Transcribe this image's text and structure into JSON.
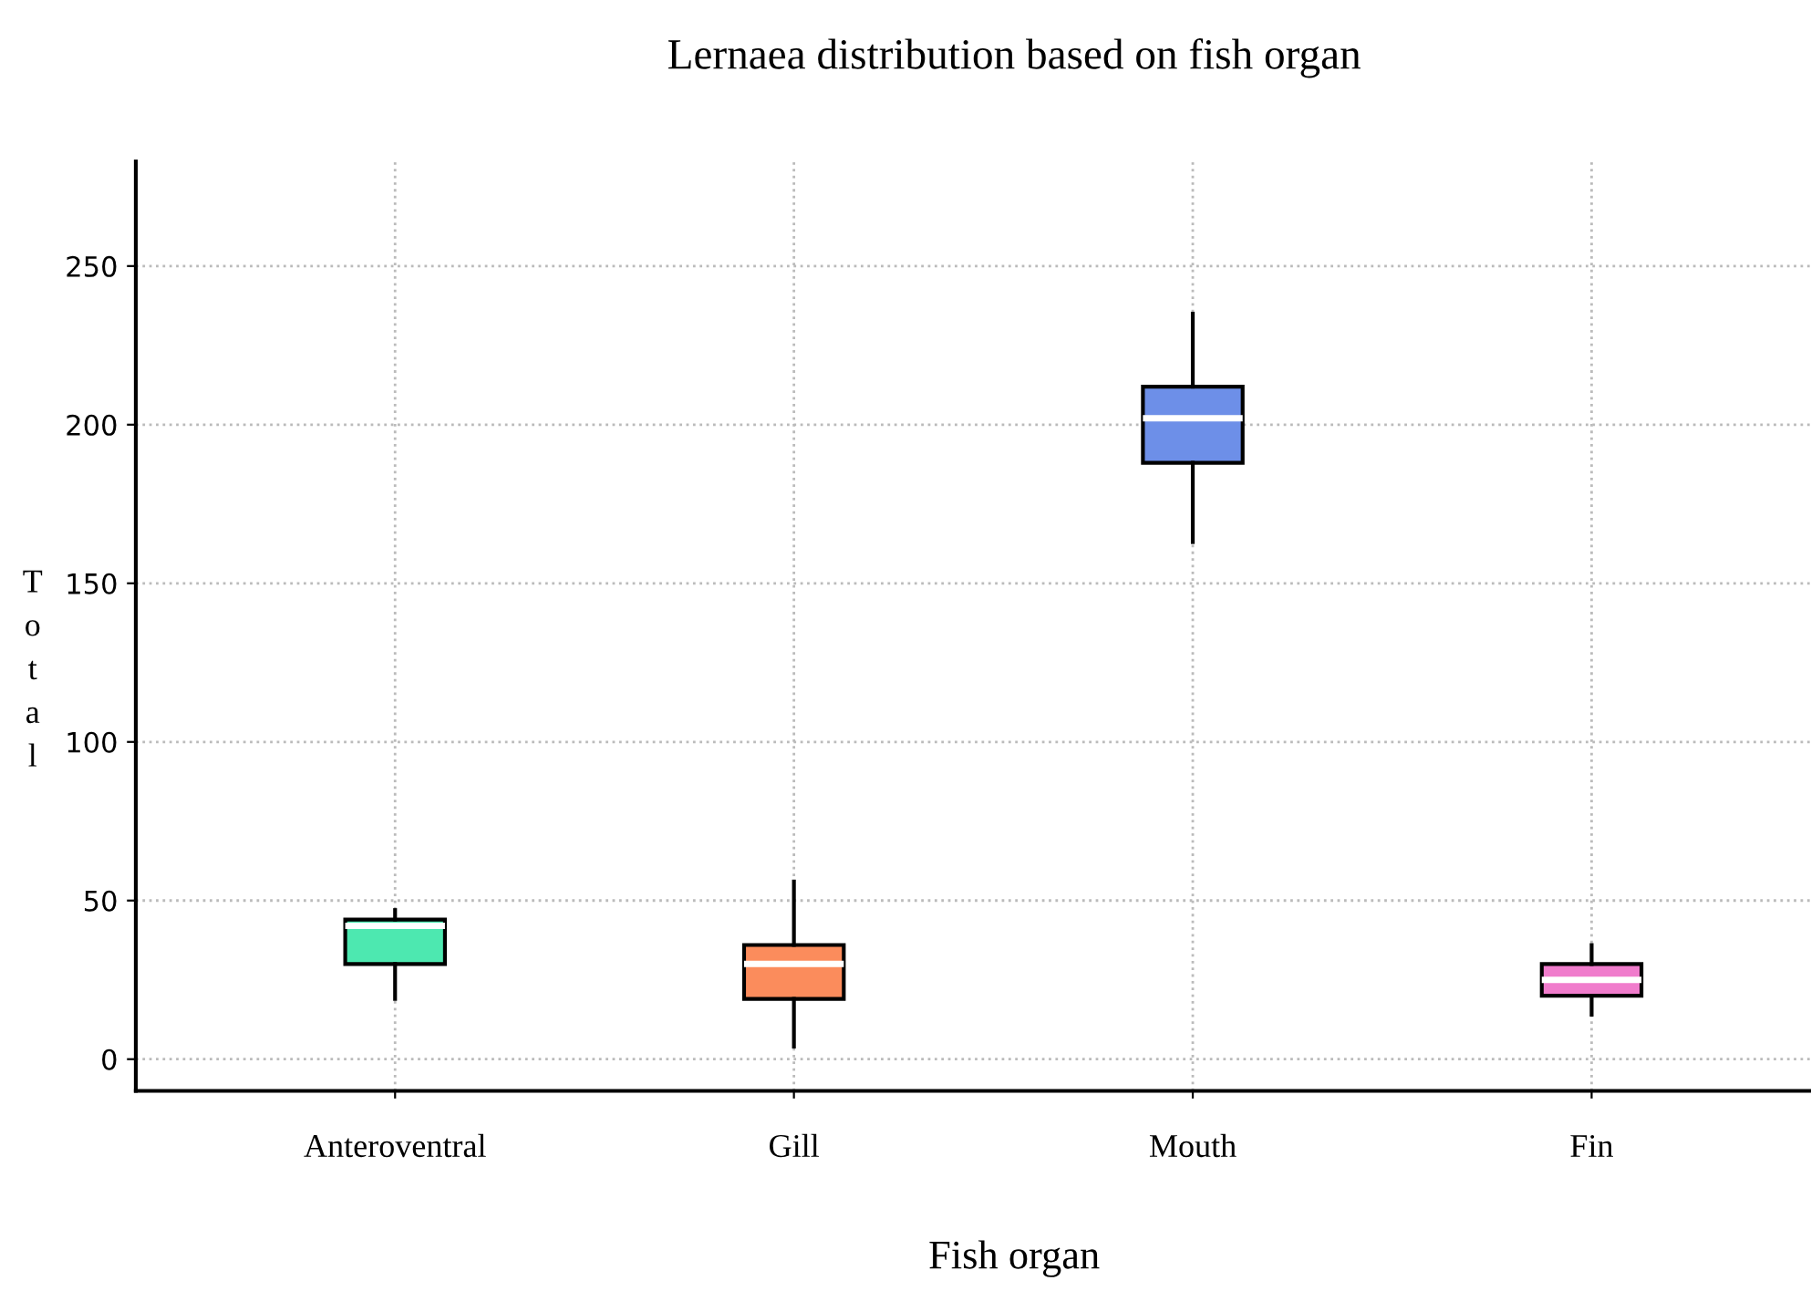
{
  "chart_data": {
    "type": "box",
    "title": "Lernaea distribution based on fish organ",
    "xlabel": "Fish organ",
    "ylabel": "Total",
    "categories": [
      "Anteroventral",
      "Gill",
      "Mouth",
      "Fin"
    ],
    "colors": [
      "#4de8b0",
      "#fb8c5c",
      "#6d8fe8",
      "#f07ccc"
    ],
    "boxes": [
      {
        "low": 19,
        "q1": 30,
        "median": 42,
        "q3": 44,
        "high": 47
      },
      {
        "low": 4,
        "q1": 19,
        "median": 30,
        "q3": 36,
        "high": 56
      },
      {
        "low": 163,
        "q1": 188,
        "median": 202,
        "q3": 212,
        "high": 235
      },
      {
        "low": 14,
        "q1": 20,
        "median": 25,
        "q3": 30,
        "high": 36
      }
    ],
    "ylim": [
      -10,
      283
    ],
    "yticks": [
      0,
      50,
      100,
      150,
      200,
      250
    ],
    "grid": true
  }
}
